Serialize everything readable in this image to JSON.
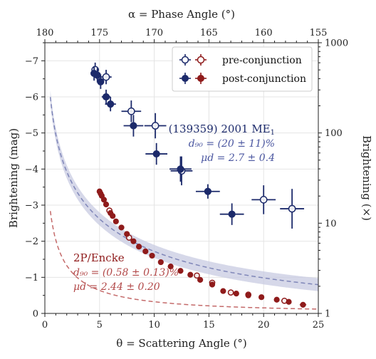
{
  "chart_data": {
    "type": "scatter",
    "axes": {
      "bottom": {
        "label": "θ = Scattering Angle (°)",
        "range": [
          0,
          25
        ],
        "ticks": [
          0,
          5,
          10,
          15,
          20,
          25
        ]
      },
      "left": {
        "label": "Brightening (mag)",
        "range": [
          0,
          -7.5
        ],
        "ticks": [
          0,
          -1,
          -2,
          -3,
          -4,
          -5,
          -6,
          -7
        ],
        "inverted": true
      },
      "top": {
        "label": "α = Phase Angle (°)",
        "ticks": [
          180,
          175,
          170,
          165,
          160,
          155
        ],
        "relation": "phase = 180 - scattering"
      },
      "right": {
        "label": "Brightening (×)",
        "scale": "log",
        "ticks": [
          1,
          10,
          100,
          1000
        ]
      }
    },
    "grid": true,
    "legend": {
      "placement": "top-right",
      "entries": [
        {
          "label": "pre-conjunction",
          "marker": "open-circle"
        },
        {
          "label": "post-conjunction",
          "marker": "filled-circle"
        }
      ]
    },
    "annotations": {
      "me1": {
        "name": "(139359) 2001 ME",
        "name_sub": "1",
        "d90": "d₉₀ = (20 ± 11)%",
        "mu": "μd = 2.7 ± 0.4"
      },
      "encke": {
        "name": "2P/Encke",
        "d90": "d₉₀ = (0.58 ± 0.13)%",
        "mu": "μd = 2.44 ± 0.20"
      }
    },
    "colors": {
      "navy": "#1c2a6b",
      "navy_fit": "#7f86b8",
      "navy_band": "#c8cbe2",
      "red": "#8f1b1b",
      "red_fit": "#c46a6a"
    },
    "series": [
      {
        "name": "(139359) 2001 ME1 pre-conjunction",
        "marker": "open",
        "color": "#1c2a6b",
        "points": [
          {
            "x": 4.6,
            "y": -6.75,
            "xerr": 0.3,
            "yerr": 0.2
          },
          {
            "x": 5.6,
            "y": -6.55,
            "xerr": 0.5,
            "yerr": 0.2
          },
          {
            "x": 7.9,
            "y": -5.6,
            "xerr": 0.9,
            "yerr": 0.3
          },
          {
            "x": 10.1,
            "y": -5.2,
            "xerr": 1.0,
            "yerr": 0.35
          },
          {
            "x": 12.5,
            "y": -3.95,
            "xerr": 1.0,
            "yerr": 0.4
          },
          {
            "x": 20.0,
            "y": -3.15,
            "xerr": 1.1,
            "yerr": 0.4
          },
          {
            "x": 22.6,
            "y": -2.9,
            "xerr": 1.1,
            "yerr": 0.55
          }
        ]
      },
      {
        "name": "(139359) 2001 ME1 post-conjunction",
        "marker": "filled",
        "color": "#1c2a6b",
        "points": [
          {
            "x": 4.5,
            "y": -6.65,
            "xerr": 0.3,
            "yerr": 0.2
          },
          {
            "x": 4.8,
            "y": -6.6,
            "xerr": 0.3,
            "yerr": 0.2
          },
          {
            "x": 5.1,
            "y": -6.42,
            "xerr": 0.3,
            "yerr": 0.2
          },
          {
            "x": 5.6,
            "y": -6.0,
            "xerr": 0.4,
            "yerr": 0.2
          },
          {
            "x": 6.0,
            "y": -5.8,
            "xerr": 0.5,
            "yerr": 0.2
          },
          {
            "x": 8.1,
            "y": -5.2,
            "xerr": 0.9,
            "yerr": 0.3
          },
          {
            "x": 10.2,
            "y": -4.42,
            "xerr": 1.0,
            "yerr": 0.3
          },
          {
            "x": 12.4,
            "y": -4.0,
            "xerr": 1.0,
            "yerr": 0.35
          },
          {
            "x": 14.9,
            "y": -3.38,
            "xerr": 1.1,
            "yerr": 0.2
          },
          {
            "x": 17.1,
            "y": -2.75,
            "xerr": 1.1,
            "yerr": 0.3
          }
        ]
      },
      {
        "name": "2P/Encke pre-conjunction",
        "marker": "open",
        "color": "#8f1b1b",
        "points": [
          {
            "x": 5.9,
            "y": -2.85,
            "xerr": 0.1,
            "yerr": 0.06
          },
          {
            "x": 7.7,
            "y": -2.1,
            "xerr": 0.2,
            "yerr": 0.06
          },
          {
            "x": 13.9,
            "y": -1.05,
            "xerr": 0.2,
            "yerr": 0.06
          },
          {
            "x": 15.3,
            "y": -0.85,
            "xerr": 0.2,
            "yerr": 0.06
          },
          {
            "x": 17.0,
            "y": -0.58,
            "xerr": 0.2,
            "yerr": 0.05
          },
          {
            "x": 18.6,
            "y": -0.52,
            "xerr": 0.2,
            "yerr": 0.05
          },
          {
            "x": 21.9,
            "y": -0.35,
            "xerr": 0.3,
            "yerr": 0.05
          }
        ]
      },
      {
        "name": "2P/Encke post-conjunction",
        "marker": "filled",
        "color": "#8f1b1b",
        "points": [
          {
            "x": 5.0,
            "y": -3.38,
            "xerr": 0.1,
            "yerr": 0.05
          },
          {
            "x": 5.1,
            "y": -3.32,
            "xerr": 0.1,
            "yerr": 0.05
          },
          {
            "x": 5.2,
            "y": -3.26,
            "xerr": 0.1,
            "yerr": 0.05
          },
          {
            "x": 5.4,
            "y": -3.15,
            "xerr": 0.1,
            "yerr": 0.05
          },
          {
            "x": 5.6,
            "y": -3.02,
            "xerr": 0.1,
            "yerr": 0.05
          },
          {
            "x": 6.0,
            "y": -2.78,
            "xerr": 0.1,
            "yerr": 0.05
          },
          {
            "x": 6.2,
            "y": -2.7,
            "xerr": 0.1,
            "yerr": 0.05
          },
          {
            "x": 6.5,
            "y": -2.55,
            "xerr": 0.1,
            "yerr": 0.05
          },
          {
            "x": 7.0,
            "y": -2.38,
            "xerr": 0.1,
            "yerr": 0.05
          },
          {
            "x": 7.5,
            "y": -2.2,
            "xerr": 0.15,
            "yerr": 0.05
          },
          {
            "x": 8.1,
            "y": -2.0,
            "xerr": 0.15,
            "yerr": 0.05
          },
          {
            "x": 8.6,
            "y": -1.85,
            "xerr": 0.15,
            "yerr": 0.05
          },
          {
            "x": 9.2,
            "y": -1.72,
            "xerr": 0.15,
            "yerr": 0.05
          },
          {
            "x": 9.8,
            "y": -1.6,
            "xerr": 0.15,
            "yerr": 0.05
          },
          {
            "x": 10.6,
            "y": -1.42,
            "xerr": 0.2,
            "yerr": 0.05
          },
          {
            "x": 11.5,
            "y": -1.3,
            "xerr": 0.2,
            "yerr": 0.05
          },
          {
            "x": 12.4,
            "y": -1.18,
            "xerr": 0.2,
            "yerr": 0.05
          },
          {
            "x": 13.3,
            "y": -1.07,
            "xerr": 0.2,
            "yerr": 0.05
          },
          {
            "x": 14.2,
            "y": -0.93,
            "xerr": 0.2,
            "yerr": 0.05
          },
          {
            "x": 15.3,
            "y": -0.8,
            "xerr": 0.2,
            "yerr": 0.05
          },
          {
            "x": 16.3,
            "y": -0.62,
            "xerr": 0.2,
            "yerr": 0.05
          },
          {
            "x": 17.5,
            "y": -0.55,
            "xerr": 0.2,
            "yerr": 0.05
          },
          {
            "x": 18.6,
            "y": -0.5,
            "xerr": 0.2,
            "yerr": 0.05
          },
          {
            "x": 19.8,
            "y": -0.45,
            "xerr": 0.25,
            "yerr": 0.05
          },
          {
            "x": 21.2,
            "y": -0.38,
            "xerr": 0.25,
            "yerr": 0.05
          },
          {
            "x": 22.3,
            "y": -0.32,
            "xerr": 0.25,
            "yerr": 0.05
          },
          {
            "x": 23.6,
            "y": -0.24,
            "xerr": 0.3,
            "yerr": 0.05
          }
        ]
      }
    ],
    "fits": [
      {
        "name": "(139359) 2001 ME1 fit",
        "style": "dashed-with-band",
        "color": "#7f86b8",
        "A": 95.0,
        "p": 1.39,
        "band_mag": 0.18
      },
      {
        "name": "2P/Encke fit",
        "style": "dashed",
        "color": "#c46a6a",
        "A": 5.5,
        "p": 1.2
      }
    ]
  }
}
